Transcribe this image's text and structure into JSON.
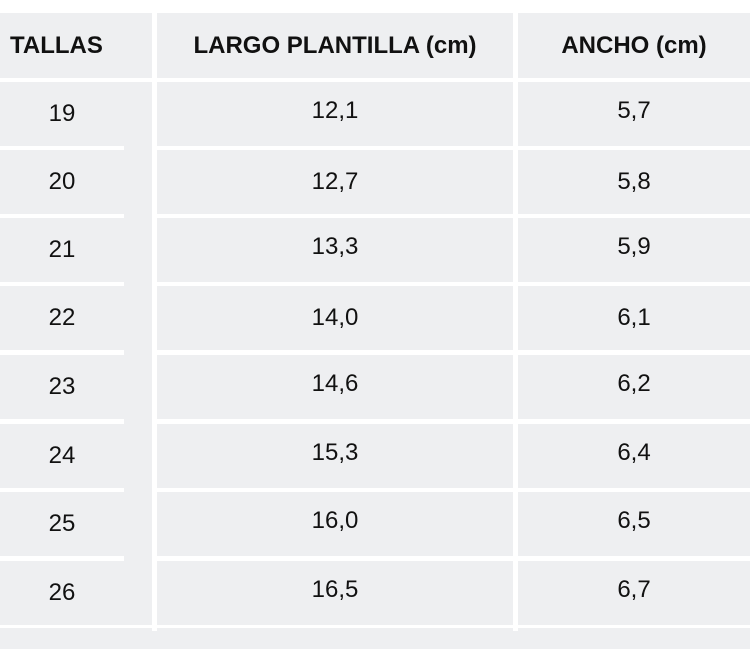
{
  "table": {
    "headers": [
      "TALLAS",
      "LARGO PLANTILLA (cm)",
      "ANCHO (cm)"
    ],
    "rows": [
      [
        "19",
        "12,1",
        "5,7"
      ],
      [
        "20",
        "12,7",
        "5,8"
      ],
      [
        "21",
        "13,3",
        "5,9"
      ],
      [
        "22",
        "14,0",
        "6,1"
      ],
      [
        "23",
        "14,6",
        "6,2"
      ],
      [
        "24",
        "15,3",
        "6,4"
      ],
      [
        "25",
        "16,0",
        "6,5"
      ],
      [
        "26",
        "16,5",
        "6,7"
      ]
    ]
  },
  "colors": {
    "cell_background": "#eeeff1",
    "grid_lines": "#ffffff",
    "text": "#111111"
  }
}
